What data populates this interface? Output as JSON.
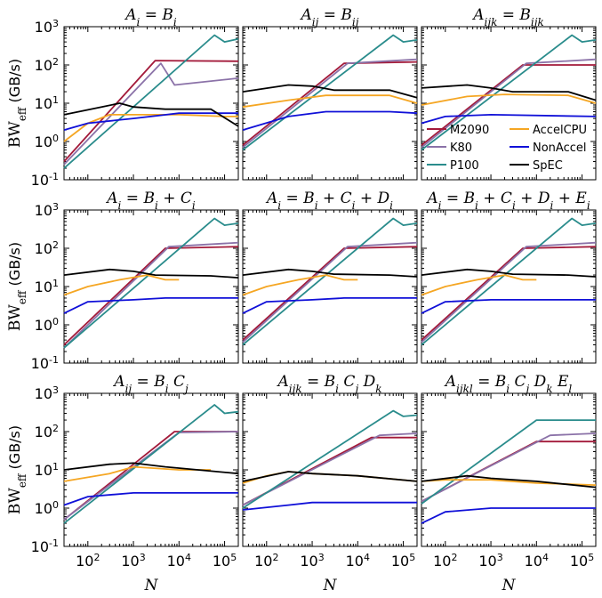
{
  "figure": {
    "ylabel": "BW_eff (GB/s)",
    "ylabel_main": "BW",
    "ylabel_sub": "eff",
    "ylabel_unit": "(GB/s)",
    "xlabel": "N",
    "yticks": [
      "10^-1",
      "10^0",
      "10^1",
      "10^2",
      "10^3"
    ],
    "xticks": [
      "10^2",
      "10^3",
      "10^4",
      "10^5"
    ]
  },
  "legend": {
    "placement": "inside panel 3",
    "entries": [
      {
        "name": "M2090",
        "color": "#a31a3a"
      },
      {
        "name": "AccelCPU",
        "color": "#f5a623"
      },
      {
        "name": "K80",
        "color": "#8b72a8"
      },
      {
        "name": "NonAccel",
        "color": "#1010d8"
      },
      {
        "name": "P100",
        "color": "#2a8c8c"
      },
      {
        "name": "SpEC",
        "color": "#000000"
      }
    ]
  },
  "chart_data": [
    {
      "type": "line",
      "title": "A_i = B_i",
      "xscale": "log",
      "yscale": "log",
      "xlim": [
        30,
        200000
      ],
      "ylim": [
        0.1,
        1000
      ],
      "series": [
        {
          "name": "M2090",
          "x": [
            30,
            3000,
            200000
          ],
          "y": [
            0.3,
            130,
            125
          ]
        },
        {
          "name": "K80",
          "x": [
            30,
            4000,
            8000,
            200000
          ],
          "y": [
            0.25,
            110,
            30,
            45
          ]
        },
        {
          "name": "P100",
          "x": [
            30,
            60000,
            100000,
            200000
          ],
          "y": [
            0.2,
            600,
            400,
            480
          ]
        },
        {
          "name": "AccelCPU",
          "x": [
            30,
            100,
            300,
            1000,
            10000,
            100000,
            200000
          ],
          "y": [
            1.0,
            3.0,
            5.0,
            5.0,
            5.0,
            4.5,
            4.5
          ]
        },
        {
          "name": "NonAccel",
          "x": [
            30,
            100,
            1000,
            10000,
            200000
          ],
          "y": [
            2.0,
            3.0,
            4.0,
            5.5,
            5.5
          ]
        },
        {
          "name": "SpEC",
          "x": [
            30,
            200,
            500,
            1000,
            5000,
            50000,
            200000
          ],
          "y": [
            5.0,
            8.0,
            10.0,
            8.0,
            7.0,
            7.0,
            2.5
          ]
        }
      ]
    },
    {
      "type": "line",
      "title": "A_ij = B_ij",
      "xscale": "log",
      "yscale": "log",
      "xlim": [
        30,
        200000
      ],
      "ylim": [
        0.1,
        1000
      ],
      "series": [
        {
          "name": "M2090",
          "x": [
            30,
            5000,
            200000
          ],
          "y": [
            0.8,
            110,
            120
          ]
        },
        {
          "name": "K80",
          "x": [
            30,
            6000,
            200000
          ],
          "y": [
            0.7,
            110,
            140
          ]
        },
        {
          "name": "P100",
          "x": [
            30,
            60000,
            100000,
            200000
          ],
          "y": [
            0.6,
            600,
            400,
            450
          ]
        },
        {
          "name": "AccelCPU",
          "x": [
            30,
            300,
            2000,
            50000,
            200000
          ],
          "y": [
            8.0,
            12.0,
            16.0,
            16.0,
            10.0
          ]
        },
        {
          "name": "NonAccel",
          "x": [
            30,
            300,
            2000,
            50000,
            200000
          ],
          "y": [
            2.0,
            4.5,
            6.0,
            6.0,
            5.5
          ]
        },
        {
          "name": "SpEC",
          "x": [
            30,
            300,
            1000,
            3000,
            50000,
            200000
          ],
          "y": [
            20.0,
            30.0,
            28.0,
            22.0,
            22.0,
            14.0
          ]
        }
      ]
    },
    {
      "type": "line",
      "title": "A_ijk = B_ijk",
      "xscale": "log",
      "yscale": "log",
      "xlim": [
        30,
        200000
      ],
      "ylim": [
        0.1,
        1000
      ],
      "series": [
        {
          "name": "M2090",
          "x": [
            30,
            5000,
            200000
          ],
          "y": [
            0.8,
            100,
            100
          ]
        },
        {
          "name": "K80",
          "x": [
            30,
            6000,
            200000
          ],
          "y": [
            0.7,
            110,
            140
          ]
        },
        {
          "name": "P100",
          "x": [
            30,
            60000,
            100000,
            200000
          ],
          "y": [
            0.6,
            600,
            400,
            450
          ]
        },
        {
          "name": "AccelCPU",
          "x": [
            30,
            300,
            2000,
            50000,
            200000
          ],
          "y": [
            9.0,
            15.0,
            17.0,
            16.0,
            10.0
          ]
        },
        {
          "name": "NonAccel",
          "x": [
            30,
            100,
            1000,
            200000
          ],
          "y": [
            3.0,
            4.5,
            5.0,
            4.5
          ]
        },
        {
          "name": "SpEC",
          "x": [
            30,
            300,
            1000,
            3000,
            50000,
            200000
          ],
          "y": [
            25.0,
            30.0,
            25.0,
            20.0,
            20.0,
            12.0
          ]
        }
      ]
    },
    {
      "type": "line",
      "title": "A_i = B_i + C_i",
      "xscale": "log",
      "yscale": "log",
      "xlim": [
        30,
        200000
      ],
      "ylim": [
        0.1,
        1000
      ],
      "series": [
        {
          "name": "M2090",
          "x": [
            30,
            5000,
            200000
          ],
          "y": [
            0.3,
            100,
            110
          ]
        },
        {
          "name": "K80",
          "x": [
            30,
            6000,
            200000
          ],
          "y": [
            0.25,
            110,
            140
          ]
        },
        {
          "name": "P100",
          "x": [
            30,
            60000,
            100000,
            200000
          ],
          "y": [
            0.25,
            600,
            400,
            450
          ]
        },
        {
          "name": "AccelCPU",
          "x": [
            30,
            100,
            500,
            2000,
            5000,
            10000
          ],
          "y": [
            6.0,
            10.0,
            15.0,
            20.0,
            15.0,
            15.0
          ]
        },
        {
          "name": "NonAccel",
          "x": [
            30,
            100,
            1000,
            5000,
            200000
          ],
          "y": [
            2.0,
            4.0,
            4.5,
            5.0,
            5.0
          ]
        },
        {
          "name": "SpEC",
          "x": [
            30,
            300,
            1000,
            3000,
            50000,
            200000
          ],
          "y": [
            20.0,
            28.0,
            25.0,
            20.0,
            19.0,
            17.0
          ]
        }
      ]
    },
    {
      "type": "line",
      "title": "A_i = B_i + C_i + D_i",
      "xscale": "log",
      "yscale": "log",
      "xlim": [
        30,
        200000
      ],
      "ylim": [
        0.1,
        1000
      ],
      "series": [
        {
          "name": "M2090",
          "x": [
            30,
            5000,
            200000
          ],
          "y": [
            0.4,
            100,
            110
          ]
        },
        {
          "name": "K80",
          "x": [
            30,
            6000,
            200000
          ],
          "y": [
            0.35,
            110,
            140
          ]
        },
        {
          "name": "P100",
          "x": [
            30,
            60000,
            100000,
            200000
          ],
          "y": [
            0.3,
            600,
            400,
            450
          ]
        },
        {
          "name": "AccelCPU",
          "x": [
            30,
            100,
            500,
            2000,
            5000,
            10000
          ],
          "y": [
            6.0,
            10.0,
            15.0,
            20.0,
            15.0,
            15.0
          ]
        },
        {
          "name": "NonAccel",
          "x": [
            30,
            100,
            1000,
            5000,
            200000
          ],
          "y": [
            2.0,
            4.0,
            4.5,
            5.0,
            5.0
          ]
        },
        {
          "name": "SpEC",
          "x": [
            30,
            300,
            1000,
            3000,
            50000,
            200000
          ],
          "y": [
            20.0,
            28.0,
            25.0,
            21.0,
            20.0,
            18.0
          ]
        }
      ]
    },
    {
      "type": "line",
      "title": "A_i = B_i + C_i + D_i + E_i",
      "xscale": "log",
      "yscale": "log",
      "xlim": [
        30,
        200000
      ],
      "ylim": [
        0.1,
        1000
      ],
      "series": [
        {
          "name": "M2090",
          "x": [
            30,
            5000,
            200000
          ],
          "y": [
            0.4,
            100,
            110
          ]
        },
        {
          "name": "K80",
          "x": [
            30,
            6000,
            200000
          ],
          "y": [
            0.35,
            110,
            140
          ]
        },
        {
          "name": "P100",
          "x": [
            30,
            60000,
            100000,
            200000
          ],
          "y": [
            0.3,
            600,
            400,
            450
          ]
        },
        {
          "name": "AccelCPU",
          "x": [
            30,
            100,
            500,
            2000,
            5000,
            10000
          ],
          "y": [
            6.0,
            10.0,
            15.0,
            20.0,
            15.0,
            15.0
          ]
        },
        {
          "name": "NonAccel",
          "x": [
            30,
            100,
            1000,
            5000,
            200000
          ],
          "y": [
            2.0,
            4.0,
            4.5,
            4.5,
            4.5
          ]
        },
        {
          "name": "SpEC",
          "x": [
            30,
            300,
            1000,
            3000,
            50000,
            200000
          ],
          "y": [
            20.0,
            28.0,
            25.0,
            21.0,
            20.0,
            18.0
          ]
        }
      ]
    },
    {
      "type": "line",
      "title": "A_ij = B_i C_j",
      "xscale": "log",
      "yscale": "log",
      "xlim": [
        30,
        200000
      ],
      "ylim": [
        0.1,
        1000
      ],
      "series": [
        {
          "name": "M2090",
          "x": [
            30,
            8000,
            200000
          ],
          "y": [
            0.5,
            100,
            100
          ]
        },
        {
          "name": "K80",
          "x": [
            30,
            10000,
            200000
          ],
          "y": [
            0.5,
            95,
            100
          ]
        },
        {
          "name": "P100",
          "x": [
            30,
            60000,
            100000,
            200000
          ],
          "y": [
            0.4,
            500,
            300,
            330
          ]
        },
        {
          "name": "AccelCPU",
          "x": [
            30,
            300,
            1000,
            10000,
            50000
          ],
          "y": [
            5.0,
            8.0,
            12.0,
            10.0,
            10.0
          ]
        },
        {
          "name": "NonAccel",
          "x": [
            30,
            100,
            1000,
            10000,
            200000
          ],
          "y": [
            1.2,
            2.0,
            2.5,
            2.5,
            2.5
          ]
        },
        {
          "name": "SpEC",
          "x": [
            30,
            300,
            1000,
            5000,
            200000
          ],
          "y": [
            10.0,
            14.0,
            15.0,
            12.0,
            8.0
          ]
        }
      ]
    },
    {
      "type": "line",
      "title": "A_ijk = B_i C_j D_k",
      "xscale": "log",
      "yscale": "log",
      "xlim": [
        30,
        200000
      ],
      "ylim": [
        0.1,
        1000
      ],
      "series": [
        {
          "name": "M2090",
          "x": [
            30,
            20000,
            200000
          ],
          "y": [
            1.2,
            70,
            70
          ]
        },
        {
          "name": "K80",
          "x": [
            30,
            30000,
            200000
          ],
          "y": [
            1.2,
            80,
            90
          ]
        },
        {
          "name": "P100",
          "x": [
            30,
            60000,
            100000,
            200000
          ],
          "y": [
            1.0,
            350,
            250,
            270
          ]
        },
        {
          "name": "AccelCPU",
          "x": [
            30,
            100,
            300,
            1000,
            10000,
            200000
          ],
          "y": [
            4.5,
            7.0,
            9.0,
            8.0,
            7.0,
            5.0
          ]
        },
        {
          "name": "NonAccel",
          "x": [
            30,
            300,
            1000,
            10000,
            200000
          ],
          "y": [
            0.9,
            1.2,
            1.4,
            1.4,
            1.4
          ]
        },
        {
          "name": "SpEC",
          "x": [
            30,
            300,
            1000,
            10000,
            200000
          ],
          "y": [
            5.0,
            9.0,
            8.0,
            7.0,
            5.0
          ]
        }
      ]
    },
    {
      "type": "line",
      "title": "A_ijkl = B_i C_j D_k E_l",
      "xscale": "log",
      "yscale": "log",
      "xlim": [
        30,
        200000
      ],
      "ylim": [
        0.1,
        1000
      ],
      "series": [
        {
          "name": "M2090",
          "x": [
            30,
            10000,
            200000
          ],
          "y": [
            1.5,
            55,
            55
          ]
        },
        {
          "name": "K80",
          "x": [
            30,
            20000,
            200000
          ],
          "y": [
            1.5,
            80,
            90
          ]
        },
        {
          "name": "P100",
          "x": [
            30,
            10000,
            200000
          ],
          "y": [
            1.3,
            200,
            200
          ]
        },
        {
          "name": "AccelCPU",
          "x": [
            30,
            100,
            1000,
            10000,
            200000
          ],
          "y": [
            5.0,
            5.5,
            5.5,
            4.5,
            4.0
          ]
        },
        {
          "name": "NonAccel",
          "x": [
            30,
            100,
            1000,
            200000
          ],
          "y": [
            0.4,
            0.8,
            1.0,
            1.0
          ]
        },
        {
          "name": "SpEC",
          "x": [
            30,
            300,
            1000,
            10000,
            200000
          ],
          "y": [
            5.0,
            7.0,
            6.0,
            5.0,
            3.5
          ]
        }
      ]
    }
  ]
}
